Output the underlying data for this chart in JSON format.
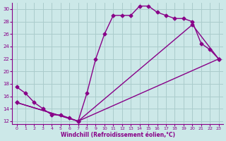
{
  "xlabel": "Windchill (Refroidissement éolien,°C)",
  "xlim": [
    -0.5,
    23.5
  ],
  "ylim": [
    11.5,
    31
  ],
  "yticks": [
    12,
    14,
    16,
    18,
    20,
    22,
    24,
    26,
    28,
    30
  ],
  "xticks": [
    0,
    1,
    2,
    3,
    4,
    5,
    6,
    7,
    8,
    9,
    10,
    11,
    12,
    13,
    14,
    15,
    16,
    17,
    18,
    19,
    20,
    21,
    22,
    23
  ],
  "bg_color": "#cce8e8",
  "grid_color": "#aacccc",
  "line_color": "#880088",
  "line1_x": [
    0,
    1,
    2,
    3,
    4,
    5,
    6,
    7,
    8,
    9,
    10,
    11,
    12,
    13,
    14,
    15,
    16,
    17,
    18,
    19,
    20,
    21,
    22,
    23
  ],
  "line1_y": [
    17.5,
    16.5,
    15.0,
    14.0,
    13.0,
    13.0,
    12.5,
    12.0,
    16.5,
    22.0,
    26.0,
    29.0,
    29.0,
    29.0,
    30.5,
    30.5,
    29.5,
    29.0,
    28.5,
    28.5,
    28.0,
    24.5,
    23.5,
    22.0
  ],
  "line2_x": [
    0,
    7,
    23
  ],
  "line2_y": [
    15.0,
    12.0,
    22.0
  ],
  "line3_x": [
    0,
    7,
    20,
    23
  ],
  "line3_y": [
    15.0,
    12.0,
    27.5,
    22.0
  ],
  "marker": "D",
  "markersize": 2.5,
  "linewidth": 1.0
}
